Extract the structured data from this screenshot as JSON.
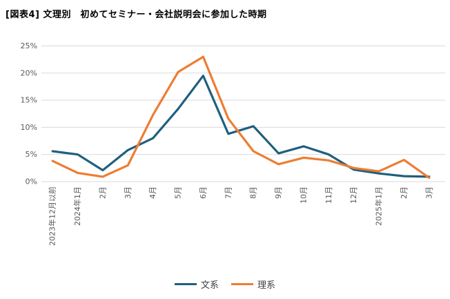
{
  "chart_data": {
    "type": "line",
    "title": "[図表4] 文理別　初めてセミナー・会社説明会に参加した時期",
    "categories": [
      "2023年12月以前",
      "2024年1月",
      "2月",
      "3月",
      "4月",
      "5月",
      "6月",
      "7月",
      "8月",
      "9月",
      "10月",
      "11月",
      "12月",
      "2025年1月",
      "2月",
      "3月"
    ],
    "series": [
      {
        "name": "文系",
        "color": "#1f5f7e",
        "values": [
          5.6,
          5.0,
          2.1,
          5.8,
          8.0,
          13.4,
          19.5,
          8.8,
          10.2,
          5.2,
          6.5,
          5.0,
          2.2,
          1.5,
          1.0,
          0.9
        ]
      },
      {
        "name": "理系",
        "color": "#ed7d31",
        "values": [
          3.8,
          1.6,
          0.9,
          3.0,
          12.3,
          20.2,
          23.0,
          11.6,
          5.6,
          3.2,
          4.4,
          3.9,
          2.5,
          1.9,
          4.0,
          0.7
        ]
      }
    ],
    "xlabel": "",
    "ylabel": "",
    "y_ticks": [
      "0%",
      "5%",
      "10%",
      "15%",
      "20%",
      "25%"
    ],
    "ylim": [
      0,
      25
    ],
    "grid": true,
    "legend_position": "bottom"
  }
}
